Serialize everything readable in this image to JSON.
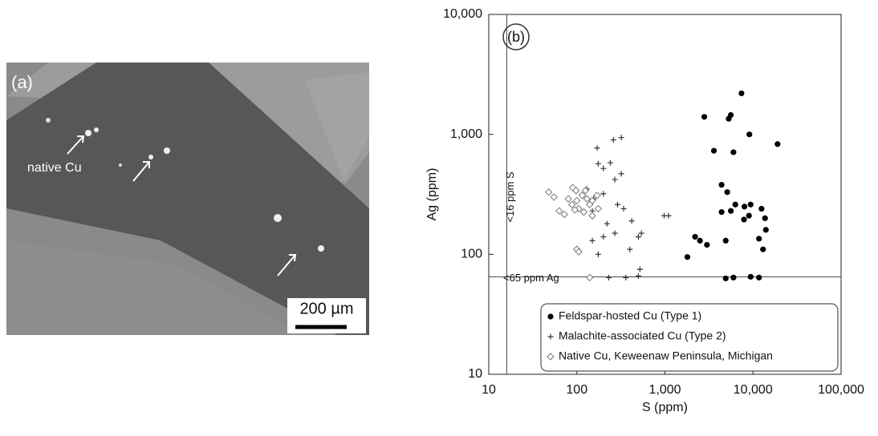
{
  "panel_a": {
    "label": "(a)",
    "annotation": "native Cu",
    "scale_bar": "200 µm"
  },
  "chart_data": {
    "type": "scatter",
    "panel_label": "(b)",
    "x_label": "S (ppm)",
    "y_label": "Ag (ppm)",
    "xscale": "log",
    "yscale": "log",
    "xlim": [
      10,
      100000
    ],
    "ylim": [
      10,
      10000
    ],
    "xticks": [
      10,
      100,
      {
        "value": 1000,
        "label": "1,000"
      },
      {
        "value": 10000,
        "label": "10,000"
      },
      {
        "value": 100000,
        "label": "100,000"
      }
    ],
    "yticks": [
      10,
      100,
      {
        "value": 1000,
        "label": "1,000"
      },
      {
        "value": 10000,
        "label": "10,000"
      }
    ],
    "grid": false,
    "legend": "bottom-right",
    "reference_lines": [
      {
        "axis": "x",
        "value": 16,
        "label": "<16 ppm S"
      },
      {
        "axis": "y",
        "value": 65,
        "label": "<65 ppm Ag"
      }
    ],
    "series": [
      {
        "name": "Feldspar-hosted Cu (Type 1)",
        "marker": "circle",
        "color": "#000000",
        "x": [
          7400,
          2800,
          5300,
          5600,
          9100,
          19000,
          3600,
          6000,
          4400,
          5100,
          5600,
          4400,
          6300,
          8000,
          9400,
          9000,
          7900,
          12500,
          13700,
          14000,
          11700,
          13000,
          4900,
          2200,
          2500,
          3000,
          1800,
          4900,
          6000,
          9400,
          11700
        ],
        "values": [
          2200,
          1400,
          1350,
          1450,
          1000,
          830,
          730,
          710,
          380,
          330,
          230,
          225,
          260,
          250,
          260,
          210,
          195,
          240,
          200,
          160,
          135,
          110,
          130,
          140,
          130,
          120,
          95,
          63,
          64,
          65,
          64
        ]
      },
      {
        "name": "Malachite-associated Cu (Type 2)",
        "marker": "plus",
        "color": "#333333",
        "x": [
          170,
          260,
          320,
          175,
          240,
          200,
          270,
          320,
          130,
          155,
          200,
          290,
          340,
          420,
          220,
          270,
          200,
          150,
          175,
          150,
          980,
          1100,
          500,
          540,
          400,
          520,
          140,
          230,
          360,
          500
        ],
        "values": [
          770,
          900,
          940,
          570,
          580,
          520,
          420,
          470,
          350,
          290,
          320,
          260,
          240,
          190,
          180,
          150,
          140,
          130,
          100,
          230,
          210,
          210,
          140,
          150,
          110,
          75,
          64,
          64,
          64,
          66
        ]
      },
      {
        "name": "Native Cu, Keweenaw Peninsula, Michigan",
        "marker": "diamond",
        "color": "#777777",
        "x": [
          48,
          55,
          63,
          72,
          80,
          88,
          90,
          98,
          100,
          105,
          115,
          125,
          130,
          140,
          150,
          170,
          175,
          150,
          120,
          95,
          100,
          105,
          140
        ],
        "values": [
          330,
          300,
          230,
          215,
          290,
          260,
          360,
          340,
          280,
          240,
          310,
          340,
          290,
          260,
          280,
          310,
          240,
          210,
          225,
          235,
          110,
          105,
          64
        ]
      }
    ]
  }
}
